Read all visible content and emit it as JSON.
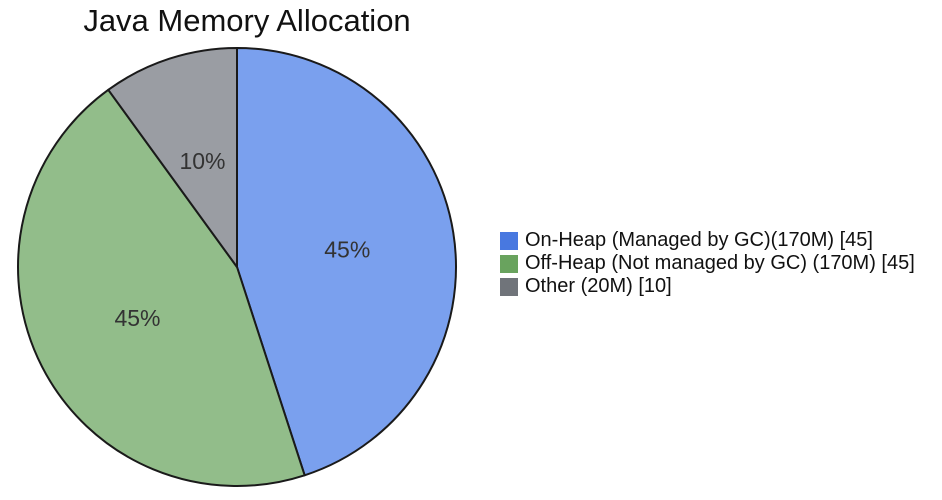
{
  "chart_data": {
    "type": "pie",
    "title": "Java Memory Allocation",
    "slices": [
      {
        "label": "On-Heap (Managed by GC)(170M) [45]",
        "value": 45,
        "pct_label": "45%",
        "color": "#7aa0ee",
        "legend_color": "#4878e0"
      },
      {
        "label": "Off-Heap (Not managed by GC) (170M) [45]",
        "value": 45,
        "pct_label": "45%",
        "color": "#92bd8a",
        "legend_color": "#69a35e"
      },
      {
        "label": "Other (20M) [10]",
        "value": 10,
        "pct_label": "10%",
        "color": "#9a9da3",
        "legend_color": "#70747a"
      }
    ],
    "total": 100,
    "start_angle_deg": 0,
    "direction": "clockwise",
    "edge_color": "#1a1a1a",
    "pct_text_color": "#333333",
    "legend_position": "center right",
    "legend_frame": "off"
  }
}
